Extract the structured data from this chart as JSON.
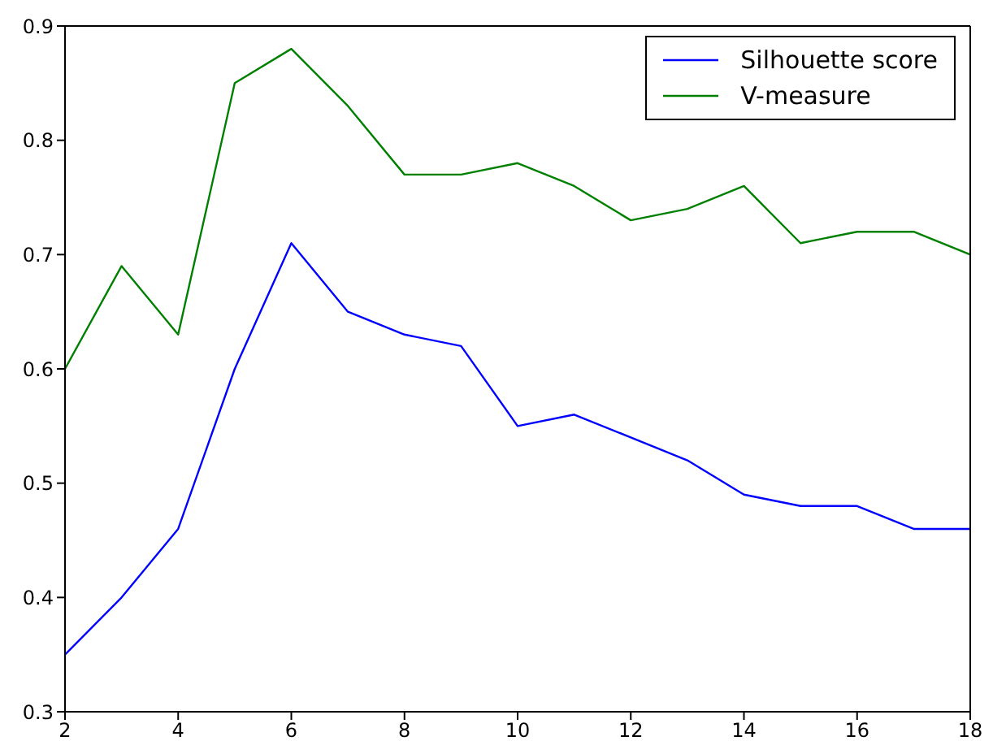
{
  "chart_data": {
    "type": "line",
    "x": [
      2,
      3,
      4,
      5,
      6,
      7,
      8,
      9,
      10,
      11,
      12,
      13,
      14,
      15,
      16,
      17,
      18
    ],
    "series": [
      {
        "name": "Silhouette score",
        "color": "#0000ff",
        "values": [
          0.35,
          0.4,
          0.46,
          0.6,
          0.71,
          0.65,
          0.63,
          0.62,
          0.55,
          0.56,
          0.54,
          0.52,
          0.49,
          0.48,
          0.48,
          0.46,
          0.46
        ]
      },
      {
        "name": "V-measure",
        "color": "#008000",
        "values": [
          0.6,
          0.69,
          0.63,
          0.85,
          0.88,
          0.83,
          0.77,
          0.77,
          0.78,
          0.76,
          0.73,
          0.74,
          0.76,
          0.71,
          0.72,
          0.72,
          0.7
        ]
      }
    ],
    "xlim": [
      2,
      18
    ],
    "xticks": [
      2,
      4,
      6,
      8,
      10,
      12,
      14,
      16,
      18
    ],
    "ylim": [
      0.3,
      0.9
    ],
    "yticks": [
      0.3,
      0.4,
      0.5,
      0.6,
      0.7,
      0.8,
      0.9
    ],
    "grid": false,
    "legend": "top right",
    "marker": "none",
    "line_style": "solid"
  }
}
